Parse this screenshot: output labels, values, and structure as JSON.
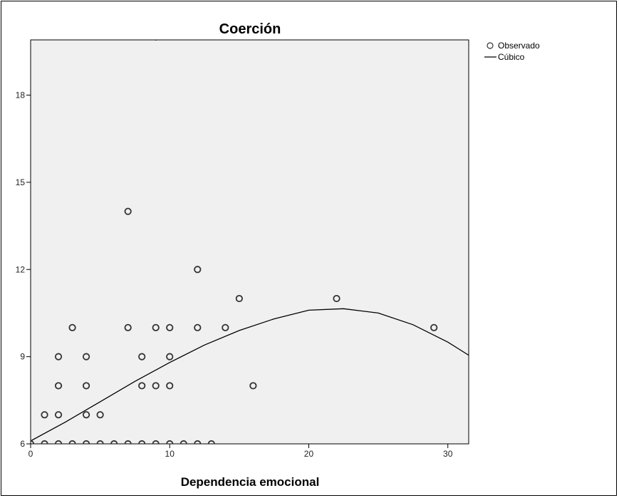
{
  "chart_data": {
    "type": "scatter",
    "title": "Coerción",
    "xlabel": "Dependencia emocional",
    "ylabel": "",
    "xlim": [
      0,
      31.5
    ],
    "ylim": [
      6,
      19.9
    ],
    "x_ticks": [
      "0",
      "10",
      "20",
      "30"
    ],
    "y_ticks": [
      "6",
      "9",
      "12",
      "15",
      "18"
    ],
    "grid": false,
    "legend_position": "top-right",
    "series": [
      {
        "name": "Observado",
        "kind": "points",
        "points": [
          [
            0,
            6
          ],
          [
            1,
            6
          ],
          [
            2,
            6
          ],
          [
            3,
            6
          ],
          [
            4,
            6
          ],
          [
            5,
            6
          ],
          [
            6,
            6
          ],
          [
            7,
            6
          ],
          [
            8,
            6
          ],
          [
            9,
            6
          ],
          [
            10,
            6
          ],
          [
            11,
            6
          ],
          [
            12,
            6
          ],
          [
            13,
            6
          ],
          [
            1,
            7
          ],
          [
            2,
            7
          ],
          [
            4,
            7
          ],
          [
            5,
            7
          ],
          [
            2,
            8
          ],
          [
            4,
            8
          ],
          [
            8,
            8
          ],
          [
            9,
            8
          ],
          [
            10,
            8
          ],
          [
            16,
            8
          ],
          [
            2,
            9
          ],
          [
            4,
            9
          ],
          [
            8,
            9
          ],
          [
            10,
            9
          ],
          [
            3,
            10
          ],
          [
            7,
            10
          ],
          [
            9,
            10
          ],
          [
            10,
            10
          ],
          [
            12,
            10
          ],
          [
            14,
            10
          ],
          [
            29,
            10
          ],
          [
            15,
            11
          ],
          [
            22,
            11
          ],
          [
            12,
            12
          ],
          [
            7,
            14
          ],
          [
            9,
            20
          ]
        ]
      },
      {
        "name": "Cúbico",
        "kind": "line",
        "points": [
          [
            0,
            6.1
          ],
          [
            2.5,
            6.75
          ],
          [
            5,
            7.45
          ],
          [
            7.5,
            8.15
          ],
          [
            10,
            8.8
          ],
          [
            12.5,
            9.4
          ],
          [
            15,
            9.9
          ],
          [
            17.5,
            10.3
          ],
          [
            20,
            10.6
          ],
          [
            22.5,
            10.65
          ],
          [
            25,
            10.5
          ],
          [
            27.5,
            10.1
          ],
          [
            30,
            9.5
          ],
          [
            31.5,
            9.05
          ]
        ]
      }
    ]
  }
}
